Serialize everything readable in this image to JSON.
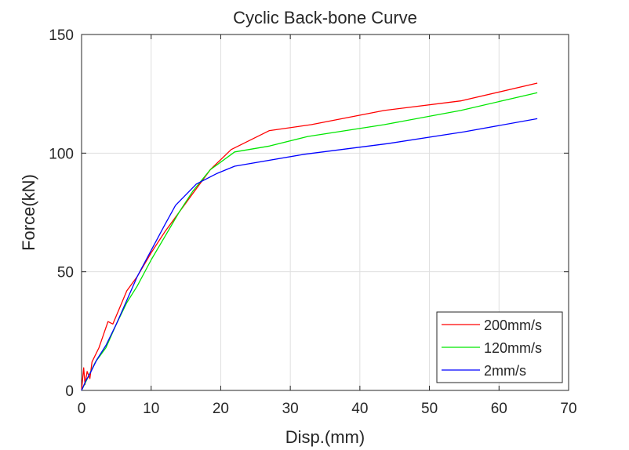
{
  "chart_data": {
    "type": "line",
    "title": "Cyclic Back-bone Curve",
    "xlabel": "Disp.(mm)",
    "ylabel": "Force(kN)",
    "xlim": [
      0,
      70
    ],
    "ylim": [
      0,
      150
    ],
    "xticks": [
      0,
      10,
      20,
      30,
      40,
      50,
      60,
      70
    ],
    "yticks": [
      0,
      50,
      100,
      150
    ],
    "xtick_labels": [
      "0",
      "10",
      "20",
      "30",
      "40",
      "50",
      "60",
      "70"
    ],
    "ytick_labels": [
      "0",
      "50",
      "100",
      "150"
    ],
    "grid": true,
    "legend_position": "bottom-right",
    "series": [
      {
        "name": "200mm/s",
        "color": "#ff0000",
        "x": [
          0,
          0.3,
          0.5,
          0.8,
          1.2,
          1.5,
          2.5,
          3.8,
          4.5,
          5.5,
          6.5,
          8.0,
          10.0,
          12.0,
          14.0,
          16.0,
          18.5,
          21.5,
          27.0,
          33.0,
          43.5,
          54.5,
          65.5
        ],
        "y": [
          0,
          9.5,
          2.5,
          8.0,
          5.0,
          12.0,
          18.0,
          29.0,
          28.0,
          35.0,
          42.0,
          48.0,
          58.0,
          67.0,
          75.0,
          83.0,
          93.0,
          101.5,
          109.5,
          112.0,
          118.0,
          122.0,
          129.5
        ]
      },
      {
        "name": "120mm/s",
        "color": "#00e600",
        "x": [
          0,
          1.0,
          2.0,
          3.5,
          5.0,
          6.5,
          8.0,
          10.0,
          12.0,
          14.0,
          16.0,
          18.5,
          22.0,
          27.0,
          32.5,
          43.5,
          54.5,
          65.5
        ],
        "y": [
          0,
          6.0,
          12.0,
          18.0,
          28.0,
          37.0,
          44.0,
          55.0,
          65.0,
          75.0,
          84.0,
          93.0,
          100.5,
          103.0,
          107.0,
          112.0,
          118.0,
          125.5
        ]
      },
      {
        "name": "2mm/s",
        "color": "#0000ff",
        "x": [
          0,
          0.6,
          1.2,
          2.2,
          3.5,
          5.0,
          6.5,
          8.0,
          10.0,
          12.0,
          13.5,
          16.5,
          19.5,
          22.0,
          32.0,
          44.0,
          55.0,
          65.5
        ],
        "y": [
          0,
          4.0,
          7.0,
          13.0,
          19.0,
          28.0,
          38.0,
          48.0,
          59.0,
          70.0,
          78.0,
          87.0,
          91.5,
          94.5,
          99.5,
          104.0,
          109.0,
          114.5
        ]
      }
    ]
  }
}
